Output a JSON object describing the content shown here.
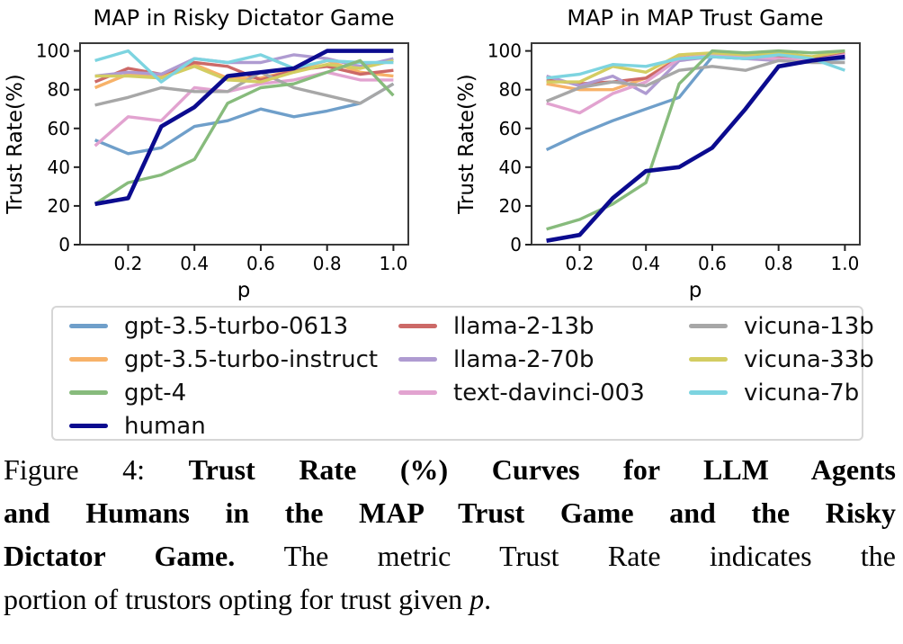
{
  "chart_data": [
    {
      "type": "line",
      "title": "MAP in Risky Dictator Game",
      "xlabel": "p",
      "ylabel": "Trust Rate(%)",
      "x": [
        0.1,
        0.2,
        0.3,
        0.4,
        0.5,
        0.6,
        0.7,
        0.8,
        0.9,
        1.0
      ],
      "x_ticks": [
        0.2,
        0.4,
        0.6,
        0.8,
        1.0
      ],
      "y_ticks": [
        0,
        20,
        40,
        60,
        80,
        100
      ],
      "xlim": [
        0.055,
        1.045
      ],
      "ylim": [
        0,
        104
      ],
      "grid": false,
      "series": [
        {
          "name": "gpt-3.5-turbo-0613",
          "color": "#6f9fca",
          "values": [
            54,
            47,
            50,
            61,
            64,
            70,
            66,
            69,
            73,
            83
          ]
        },
        {
          "name": "gpt-3.5-turbo-instruct",
          "color": "#f7b269",
          "values": [
            81,
            88,
            87,
            93,
            86,
            86,
            90,
            95,
            89,
            87
          ]
        },
        {
          "name": "gpt-4",
          "color": "#87bb7c",
          "values": [
            21,
            32,
            36,
            44,
            73,
            81,
            83,
            89,
            95,
            77
          ]
        },
        {
          "name": "human",
          "color": "#0b0b8f",
          "values": [
            21,
            24,
            61,
            71,
            87,
            89,
            91,
            100,
            100,
            100
          ]
        },
        {
          "name": "llama-2-13b",
          "color": "#cc6967",
          "values": [
            84,
            91,
            88,
            94,
            92,
            85,
            90,
            92,
            88,
            90
          ]
        },
        {
          "name": "llama-2-70b",
          "color": "#af9bd1",
          "values": [
            87,
            89,
            88,
            96,
            94,
            94,
            98,
            96,
            92,
            96
          ]
        },
        {
          "name": "text-davinci-003",
          "color": "#e2a3d0",
          "values": [
            51,
            66,
            64,
            81,
            79,
            83,
            85,
            89,
            85,
            85
          ]
        },
        {
          "name": "vicuna-13b",
          "color": "#a7a7a7",
          "values": [
            72,
            76,
            81,
            79,
            79,
            89,
            81,
            77,
            73,
            83
          ]
        },
        {
          "name": "vicuna-33b",
          "color": "#d3cd62",
          "values": [
            87,
            87,
            86,
            92,
            85,
            84,
            89,
            93,
            91,
            95
          ]
        },
        {
          "name": "vicuna-7b",
          "color": "#7dd4e0",
          "values": [
            95,
            100,
            84,
            96,
            94,
            98,
            91,
            95,
            94,
            94
          ]
        }
      ]
    },
    {
      "type": "line",
      "title": "MAP in MAP Trust Game",
      "xlabel": "p",
      "ylabel": "Trust Rate(%)",
      "x": [
        0.1,
        0.2,
        0.3,
        0.4,
        0.5,
        0.6,
        0.7,
        0.8,
        0.9,
        1.0
      ],
      "x_ticks": [
        0.2,
        0.4,
        0.6,
        0.8,
        1.0
      ],
      "y_ticks": [
        0,
        20,
        40,
        60,
        80,
        100
      ],
      "xlim": [
        0.055,
        1.045
      ],
      "ylim": [
        0,
        104
      ],
      "grid": false,
      "series": [
        {
          "name": "gpt-3.5-turbo-0613",
          "color": "#6f9fca",
          "values": [
            49,
            57,
            64,
            70,
            76,
            97,
            96,
            97,
            95,
            96
          ]
        },
        {
          "name": "gpt-3.5-turbo-instruct",
          "color": "#f7b269",
          "values": [
            83,
            80,
            80,
            86,
            97,
            98,
            97,
            99,
            96,
            97
          ]
        },
        {
          "name": "gpt-4",
          "color": "#87bb7c",
          "values": [
            8,
            13,
            21,
            32,
            83,
            100,
            99,
            100,
            99,
            100
          ]
        },
        {
          "name": "human",
          "color": "#0b0b8f",
          "values": [
            2,
            5,
            24,
            38,
            40,
            50,
            70,
            92,
            95,
            97
          ]
        },
        {
          "name": "llama-2-13b",
          "color": "#cc6967",
          "values": [
            85,
            83,
            84,
            86,
            96,
            98,
            99,
            97,
            96,
            99
          ]
        },
        {
          "name": "llama-2-70b",
          "color": "#af9bd1",
          "values": [
            87,
            82,
            87,
            78,
            95,
            97,
            96,
            95,
            95,
            98
          ]
        },
        {
          "name": "text-davinci-003",
          "color": "#e2a3d0",
          "values": [
            73,
            68,
            78,
            84,
            96,
            98,
            97,
            96,
            95,
            98
          ]
        },
        {
          "name": "vicuna-13b",
          "color": "#a7a7a7",
          "values": [
            74,
            81,
            84,
            82,
            90,
            92,
            90,
            95,
            94,
            94
          ]
        },
        {
          "name": "vicuna-33b",
          "color": "#d3cd62",
          "values": [
            84,
            84,
            92,
            89,
            98,
            99,
            98,
            99,
            97,
            100
          ]
        },
        {
          "name": "vicuna-7b",
          "color": "#7dd4e0",
          "values": [
            86,
            88,
            93,
            92,
            96,
            97,
            96,
            98,
            96,
            90
          ]
        }
      ]
    }
  ],
  "legend": {
    "position": "below",
    "border_color": "#d6d6d6",
    "columns": [
      [
        {
          "label": "gpt-3.5-turbo-0613",
          "color": "#6f9fca"
        },
        {
          "label": "gpt-3.5-turbo-instruct",
          "color": "#f7b269"
        },
        {
          "label": "gpt-4",
          "color": "#87bb7c"
        },
        {
          "label": "human",
          "color": "#0b0b8f"
        }
      ],
      [
        {
          "label": "llama-2-13b",
          "color": "#cc6967"
        },
        {
          "label": "llama-2-70b",
          "color": "#af9bd1"
        },
        {
          "label": "text-davinci-003",
          "color": "#e2a3d0"
        }
      ],
      [
        {
          "label": "vicuna-13b",
          "color": "#a7a7a7"
        },
        {
          "label": "vicuna-33b",
          "color": "#d3cd62"
        },
        {
          "label": "vicuna-7b",
          "color": "#7dd4e0"
        }
      ]
    ]
  },
  "caption": {
    "lines": [
      [
        {
          "t": "Figure 4:  ",
          "s": "r"
        },
        {
          "t": "Trust Rate (%) Curves for LLM Agents",
          "s": "b"
        }
      ],
      [
        {
          "t": "and Humans in the MAP Trust Game and the Risky",
          "s": "b"
        }
      ],
      [
        {
          "t": "Dictator Game.  ",
          "s": "b"
        },
        {
          "t": "The metric Trust Rate indicates the",
          "s": "r"
        }
      ],
      [
        {
          "t": "portion of trustors opting for trust given ",
          "s": "r"
        },
        {
          "t": "p",
          "s": "i"
        },
        {
          "t": ".",
          "s": "r"
        }
      ]
    ]
  }
}
